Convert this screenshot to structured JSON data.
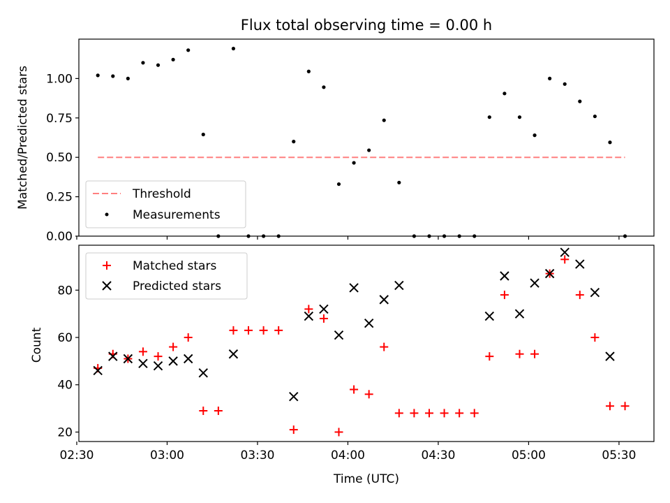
{
  "chart_data": [
    {
      "type": "scatter",
      "title": "Flux total observing time = 0.00 h",
      "xlabel": "",
      "ylabel": "Matched/Predicted stars",
      "ylim": [
        0,
        1.25
      ],
      "yticks": [
        "0.00",
        "0.25",
        "0.50",
        "0.75",
        "1.00"
      ],
      "threshold": {
        "name": "Threshold",
        "value": 0.5,
        "color": "#ff7f7f",
        "x_start": 157,
        "x_end": 332
      },
      "series": [
        {
          "name": "Measurements",
          "color": "#000000",
          "marker": "dot",
          "x": [
            157,
            162,
            167,
            172,
            177,
            182,
            187,
            192,
            197,
            202,
            207,
            212,
            217,
            222,
            227,
            232,
            237,
            242,
            247,
            252,
            257,
            262,
            267,
            272,
            277,
            282,
            287,
            292,
            297,
            302,
            307,
            312,
            317,
            322,
            327,
            332
          ],
          "y": [
            1.02,
            1.015,
            1.0,
            1.1,
            1.085,
            1.12,
            1.18,
            0.645,
            0.0,
            1.19,
            0.0,
            0.0,
            0.0,
            0.6,
            1.045,
            0.945,
            0.33,
            0.465,
            0.545,
            0.735,
            0.34,
            0.0,
            0.0,
            0.0,
            0.0,
            0.0,
            0.755,
            0.905,
            0.755,
            0.64,
            1.0,
            0.965,
            0.855,
            0.76,
            0.595,
            0.0
          ]
        }
      ]
    },
    {
      "type": "scatter",
      "title": "",
      "xlabel": "Time (UTC)",
      "ylabel": "Count",
      "xlim": [
        150.7,
        341.6
      ],
      "ylim": [
        16,
        99
      ],
      "yticks": [
        "20",
        "40",
        "60",
        "80"
      ],
      "xticks": [
        {
          "value": 150,
          "label": "02:30"
        },
        {
          "value": 180,
          "label": "03:00"
        },
        {
          "value": 210,
          "label": "03:30"
        },
        {
          "value": 240,
          "label": "04:00"
        },
        {
          "value": 270,
          "label": "04:30"
        },
        {
          "value": 300,
          "label": "05:00"
        },
        {
          "value": 330,
          "label": "05:30"
        }
      ],
      "series": [
        {
          "name": "Matched stars",
          "color": "#ff0000",
          "marker": "plus",
          "x": [
            157,
            162,
            167,
            172,
            177,
            182,
            187,
            192,
            197,
            202,
            207,
            212,
            217,
            222,
            227,
            232,
            237,
            242,
            247,
            252,
            257,
            262,
            267,
            272,
            277,
            282,
            287,
            292,
            297,
            302,
            307,
            312,
            317,
            322,
            327,
            332
          ],
          "y": [
            47,
            53,
            51,
            54,
            52,
            56,
            60,
            29,
            29,
            63,
            63,
            63,
            63,
            21,
            72,
            68,
            20,
            38,
            36,
            56,
            28,
            28,
            28,
            28,
            28,
            28,
            52,
            78,
            53,
            53,
            87,
            93,
            78,
            60,
            31,
            31
          ]
        },
        {
          "name": "Predicted stars",
          "color": "#000000",
          "marker": "x",
          "x": [
            157,
            162,
            167,
            172,
            177,
            182,
            187,
            192,
            202,
            222,
            227,
            232,
            237,
            242,
            247,
            252,
            257,
            287,
            292,
            297,
            302,
            307,
            312,
            317,
            322,
            327
          ],
          "y": [
            46,
            52,
            51,
            49,
            48,
            50,
            51,
            45,
            53,
            35,
            69,
            72,
            61,
            81,
            66,
            76,
            82,
            69,
            86,
            70,
            83,
            87,
            96,
            91,
            79,
            52
          ]
        }
      ]
    }
  ]
}
